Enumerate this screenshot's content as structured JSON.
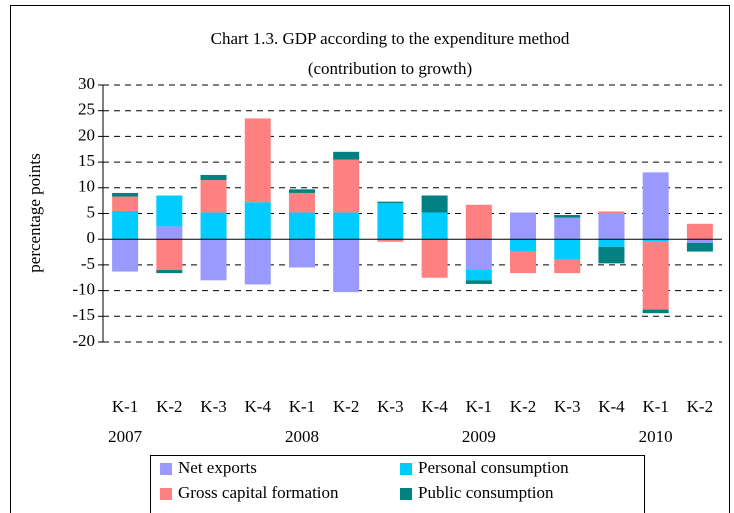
{
  "chart_data": {
    "type": "bar",
    "stacked": true,
    "title": [
      "Chart 1.3. GDP according to the expenditure method",
      "(contribution to growth)"
    ],
    "y_label": "percentage points",
    "categories": [
      "K-1",
      "K-2",
      "K-3",
      "K-4",
      "K-1",
      "K-2",
      "K-3",
      "K-4",
      "K-1",
      "K-2",
      "K-3",
      "K-4",
      "K-1",
      "K-2"
    ],
    "year_labels": [
      "2007",
      null,
      null,
      null,
      "2008",
      null,
      null,
      null,
      "2009",
      null,
      null,
      null,
      "2010",
      null
    ],
    "series": [
      {
        "name": "Net exports",
        "color": "#9999ff",
        "values": [
          -6.3,
          2.5,
          -8.0,
          -8.8,
          -5.5,
          -10.3,
          0,
          0,
          -6.0,
          5.2,
          4.2,
          5.0,
          13.0,
          -0.7
        ]
      },
      {
        "name": "Personal consumption",
        "color": "#00ccff",
        "values": [
          5.5,
          6.0,
          5.2,
          7.2,
          5.2,
          5.2,
          7.0,
          5.2,
          -2.0,
          -2.3,
          -4.0,
          -1.5,
          -0.5,
          0
        ]
      },
      {
        "name": "Gross capital formation",
        "color": "#ff8080",
        "values": [
          2.8,
          -6.0,
          6.3,
          16.3,
          3.8,
          10.3,
          -0.5,
          -7.5,
          6.7,
          -4.3,
          -2.6,
          0.4,
          -13.2,
          3.0
        ]
      },
      {
        "name": "Public consumption",
        "color": "#008080",
        "values": [
          0.7,
          -0.6,
          1.0,
          0,
          0.7,
          1.5,
          0.3,
          3.3,
          -0.7,
          0,
          0.5,
          -3.2,
          -0.7,
          -1.7
        ]
      }
    ],
    "ylim": [
      -20,
      30
    ],
    "yticks": [
      -20,
      -15,
      -10,
      -5,
      0,
      5,
      10,
      15,
      20,
      25,
      30
    ],
    "grid": true
  }
}
